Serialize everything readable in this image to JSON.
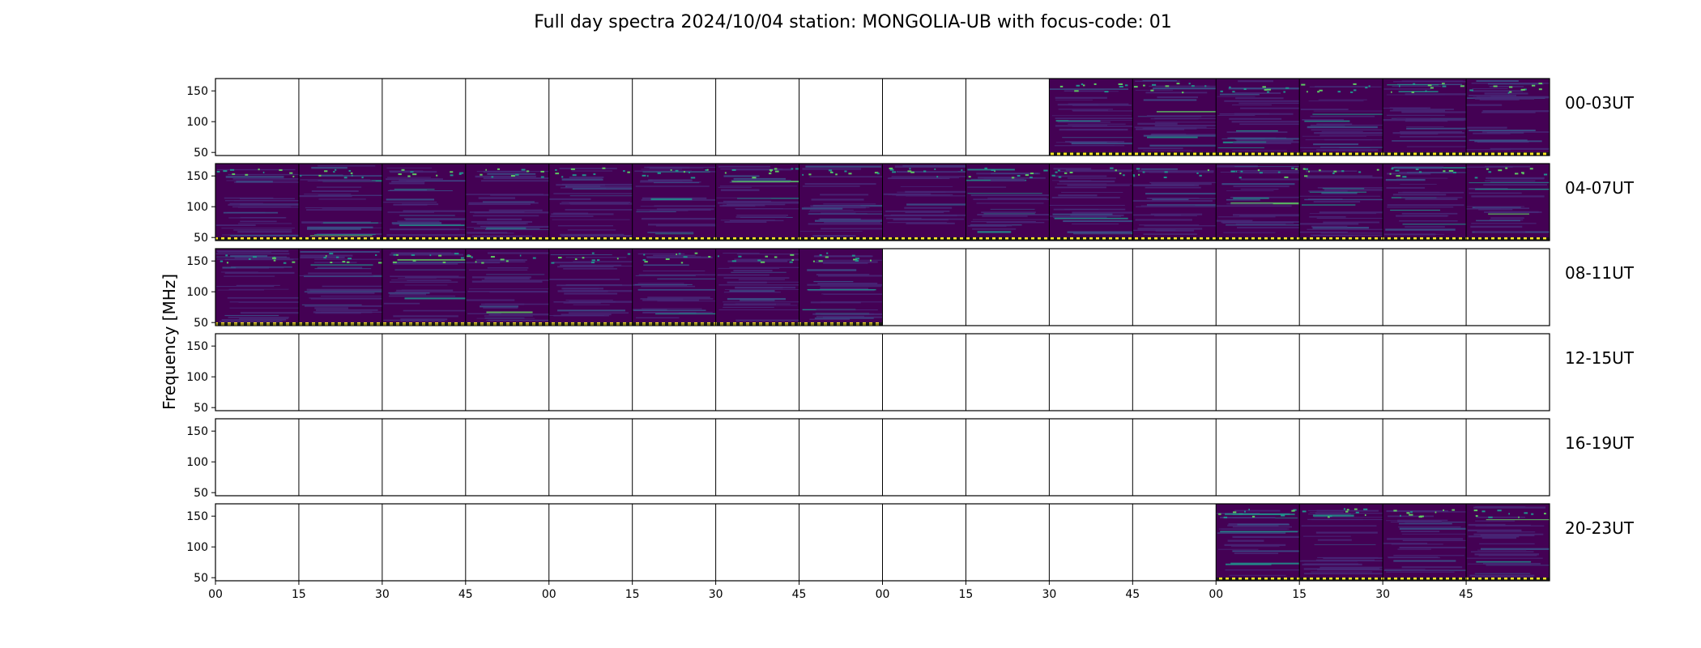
{
  "chart_data": {
    "type": "heatmap",
    "title": "Full day spectra 2024/10/04 station: MONGOLIA-UB with focus-code: 01",
    "ylabel": "Frequency [MHz]",
    "ylim": [
      45,
      170
    ],
    "yticks": [
      "50",
      "100",
      "150"
    ],
    "xticks": [
      "00",
      "15",
      "30",
      "45",
      "00",
      "15",
      "30",
      "45",
      "00",
      "15",
      "30",
      "45",
      "00",
      "15",
      "30",
      "45"
    ],
    "rows": [
      {
        "label": "00-03UT",
        "filled": [
          false,
          false,
          false,
          false,
          false,
          false,
          false,
          false,
          false,
          false,
          true,
          true,
          true,
          true,
          true,
          true
        ]
      },
      {
        "label": "04-07UT",
        "filled": [
          true,
          true,
          true,
          true,
          true,
          true,
          true,
          true,
          true,
          true,
          true,
          true,
          true,
          true,
          true,
          true
        ]
      },
      {
        "label": "08-11UT",
        "filled": [
          true,
          true,
          true,
          true,
          true,
          true,
          true,
          true,
          false,
          false,
          false,
          false,
          false,
          false,
          false,
          false
        ]
      },
      {
        "label": "12-15UT",
        "filled": [
          false,
          false,
          false,
          false,
          false,
          false,
          false,
          false,
          false,
          false,
          false,
          false,
          false,
          false,
          false,
          false
        ]
      },
      {
        "label": "16-19UT",
        "filled": [
          false,
          false,
          false,
          false,
          false,
          false,
          false,
          false,
          false,
          false,
          false,
          false,
          false,
          false,
          false,
          false
        ]
      },
      {
        "label": "20-23UT",
        "filled": [
          false,
          false,
          false,
          false,
          false,
          false,
          false,
          false,
          false,
          false,
          false,
          false,
          true,
          true,
          true,
          true
        ]
      }
    ],
    "colors": {
      "background": "#440154",
      "mid": "#3b528b",
      "high": "#21918c",
      "peak": "#5ec962",
      "marker": "#fde725"
    }
  }
}
